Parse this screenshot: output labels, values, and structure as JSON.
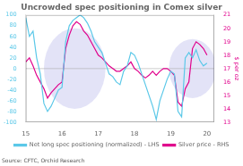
{
  "chart_data": {
    "type": "line",
    "title": "Uncrowded spec positioning in Comex silver",
    "source": "Source: CFTC, Orchid Research",
    "x": [
      15.0,
      15.1,
      15.2,
      15.3,
      15.4,
      15.5,
      15.6,
      15.7,
      15.8,
      15.9,
      16.0,
      16.1,
      16.2,
      16.3,
      16.4,
      16.5,
      16.6,
      16.7,
      16.8,
      16.9,
      17.0,
      17.1,
      17.2,
      17.3,
      17.4,
      17.5,
      17.6,
      17.7,
      17.8,
      17.9,
      18.0,
      18.1,
      18.2,
      18.3,
      18.4,
      18.5,
      18.6,
      18.7,
      18.8,
      18.9,
      19.0,
      19.1,
      19.2,
      19.3,
      19.4,
      19.5,
      19.6,
      19.7,
      19.8,
      19.9,
      20.0
    ],
    "series": [
      {
        "name": "Net long spec positioning (normalized) - LHS",
        "color": "#5bc8e8",
        "values": [
          95,
          60,
          70,
          20,
          -10,
          -65,
          -80,
          -70,
          -55,
          -40,
          -35,
          50,
          80,
          90,
          95,
          100,
          95,
          85,
          70,
          50,
          40,
          30,
          10,
          -10,
          -15,
          -25,
          -30,
          -5,
          5,
          30,
          25,
          10,
          -10,
          -30,
          -50,
          -70,
          -95,
          -60,
          -40,
          -20,
          -5,
          -10,
          -80,
          -90,
          20,
          30,
          20,
          35,
          15,
          5,
          10
        ]
      },
      {
        "name": "Silver price - RHS",
        "color": "#e0008c",
        "axis": "y2",
        "values": [
          17.5,
          17.8,
          17.2,
          16.5,
          16.0,
          15.5,
          14.8,
          15.2,
          15.5,
          15.8,
          16.0,
          18.5,
          19.5,
          20.2,
          20.5,
          20.3,
          19.8,
          19.5,
          19.0,
          18.5,
          18.0,
          17.8,
          17.5,
          17.2,
          17.0,
          16.8,
          16.8,
          17.0,
          17.2,
          17.5,
          17.0,
          16.8,
          16.5,
          16.3,
          16.5,
          16.8,
          16.5,
          16.8,
          17.0,
          17.0,
          16.8,
          16.5,
          14.5,
          14.2,
          15.5,
          16.0,
          18.5,
          19.0,
          18.8,
          18.5,
          18.0
        ]
      }
    ],
    "xlim": [
      15,
      20.2
    ],
    "xticks": [
      15,
      16,
      17,
      18,
      19,
      20
    ],
    "ylim": [
      -100,
      100
    ],
    "yticks": [
      -100,
      -80,
      -60,
      -40,
      -20,
      0,
      20,
      40,
      60,
      80,
      100
    ],
    "y2lim": [
      13,
      21
    ],
    "y2ticks": [
      13,
      14,
      15,
      16,
      17,
      18,
      19,
      20,
      21
    ],
    "y2label": "$ per oz",
    "grid": false,
    "legend": "bottom",
    "hline": 0,
    "highlights": [
      {
        "center": [
          16.35,
          0
        ],
        "radius_x": 0.85,
        "radius_y": 75,
        "color": "#b0b0e8"
      },
      {
        "center": [
          19.6,
          0
        ],
        "radius_x": 0.65,
        "radius_y": 55,
        "color": "#b0b0e8"
      }
    ]
  }
}
